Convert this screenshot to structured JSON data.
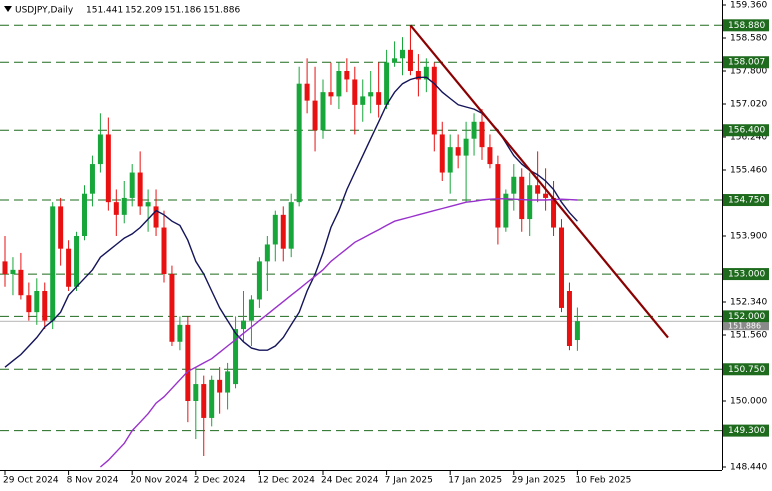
{
  "chart_data": {
    "type": "candlestick",
    "title": "USDJPY,Daily",
    "up_color": "#17a63a",
    "down_color": "#e81010",
    "categories": [
      "29 Oct 2024",
      null,
      null,
      null,
      null,
      null,
      null,
      null,
      "8 Nov 2024",
      null,
      null,
      null,
      null,
      null,
      null,
      null,
      "20 Nov 2024",
      null,
      null,
      null,
      null,
      null,
      null,
      null,
      "2 Dec 2024",
      null,
      null,
      null,
      null,
      null,
      null,
      null,
      "12 Dec 2024",
      null,
      null,
      null,
      null,
      null,
      null,
      null,
      "24 Dec 2024",
      null,
      null,
      null,
      null,
      null,
      null,
      null,
      "7 Jan 2025",
      null,
      null,
      null,
      null,
      null,
      null,
      null,
      "17 Jan 2025",
      null,
      null,
      null,
      null,
      null,
      null,
      null,
      "29 Jan 2025",
      null,
      null,
      null,
      null,
      null,
      null,
      null,
      "10 Feb 2025"
    ],
    "ohlc": [
      [
        153.3,
        153.9,
        152.7,
        153.0
      ],
      [
        153.0,
        153.4,
        152.5,
        153.1
      ],
      [
        153.1,
        153.5,
        152.4,
        152.5
      ],
      [
        152.5,
        152.8,
        151.9,
        152.1
      ],
      [
        152.1,
        152.9,
        151.8,
        152.6
      ],
      [
        152.6,
        152.8,
        151.7,
        151.9
      ],
      [
        151.9,
        154.7,
        151.7,
        154.6
      ],
      [
        154.6,
        154.8,
        153.2,
        153.6
      ],
      [
        153.6,
        153.8,
        152.6,
        152.7
      ],
      [
        152.7,
        154.0,
        152.6,
        153.9
      ],
      [
        153.9,
        155.1,
        153.8,
        154.9
      ],
      [
        154.9,
        155.8,
        154.6,
        155.6
      ],
      [
        155.6,
        156.8,
        155.4,
        156.3
      ],
      [
        156.3,
        156.7,
        154.5,
        154.7
      ],
      [
        154.7,
        155.0,
        153.9,
        154.4
      ],
      [
        154.4,
        155.2,
        154.2,
        154.8
      ],
      [
        154.8,
        155.6,
        154.6,
        155.4
      ],
      [
        155.4,
        155.9,
        154.4,
        154.6
      ],
      [
        154.6,
        155.0,
        154.0,
        154.7
      ],
      [
        154.6,
        155.0,
        153.9,
        154.1
      ],
      [
        154.1,
        154.5,
        152.8,
        153.0
      ],
      [
        153.0,
        153.2,
        151.3,
        151.4
      ],
      [
        151.4,
        152.0,
        151.2,
        151.8
      ],
      [
        151.8,
        152.0,
        149.5,
        150.0
      ],
      [
        150.0,
        150.8,
        149.1,
        150.4
      ],
      [
        150.4,
        150.6,
        148.7,
        149.6
      ],
      [
        149.6,
        150.6,
        149.4,
        150.5
      ],
      [
        150.5,
        150.8,
        149.7,
        150.2
      ],
      [
        150.2,
        150.9,
        149.8,
        150.7
      ],
      [
        150.4,
        152.0,
        150.3,
        151.7
      ],
      [
        151.7,
        152.6,
        151.4,
        151.9
      ],
      [
        151.9,
        152.5,
        151.3,
        152.4
      ],
      [
        152.4,
        153.4,
        152.2,
        153.3
      ],
      [
        153.3,
        153.9,
        152.6,
        153.7
      ],
      [
        153.7,
        154.5,
        153.3,
        154.4
      ],
      [
        154.4,
        154.6,
        153.3,
        153.6
      ],
      [
        153.6,
        154.9,
        153.4,
        154.7
      ],
      [
        154.7,
        157.9,
        154.6,
        157.5
      ],
      [
        157.5,
        158.1,
        156.8,
        157.1
      ],
      [
        157.1,
        157.9,
        155.9,
        156.4
      ],
      [
        156.4,
        157.6,
        156.2,
        157.3
      ],
      [
        157.3,
        158.0,
        157.0,
        157.2
      ],
      [
        157.2,
        158.0,
        156.9,
        157.8
      ],
      [
        157.8,
        158.1,
        157.3,
        157.6
      ],
      [
        157.6,
        157.9,
        156.3,
        157.0
      ],
      [
        157.0,
        157.6,
        156.6,
        157.2
      ],
      [
        157.2,
        157.8,
        156.8,
        157.3
      ],
      [
        157.3,
        158.0,
        156.7,
        157.0
      ],
      [
        157.0,
        158.3,
        156.9,
        158.0
      ],
      [
        158.0,
        158.5,
        157.9,
        158.1
      ],
      [
        158.1,
        158.6,
        157.7,
        158.3
      ],
      [
        158.3,
        158.88,
        157.7,
        157.8
      ],
      [
        157.8,
        158.2,
        157.2,
        157.6
      ],
      [
        157.6,
        158.1,
        157.3,
        157.9
      ],
      [
        157.9,
        158.0,
        155.9,
        156.3
      ],
      [
        156.3,
        156.6,
        155.2,
        155.4
      ],
      [
        155.4,
        156.3,
        154.9,
        156.0
      ],
      [
        156.0,
        156.3,
        155.5,
        155.8
      ],
      [
        155.8,
        156.6,
        154.7,
        156.2
      ],
      [
        156.2,
        156.8,
        155.8,
        156.6
      ],
      [
        156.6,
        156.9,
        155.7,
        156.0
      ],
      [
        156.0,
        156.3,
        155.5,
        155.6
      ],
      [
        155.6,
        155.8,
        153.7,
        154.1
      ],
      [
        154.1,
        155.0,
        154.0,
        154.9
      ],
      [
        154.9,
        155.6,
        154.5,
        155.3
      ],
      [
        155.3,
        155.5,
        154.0,
        154.3
      ],
      [
        154.3,
        155.4,
        153.9,
        155.1
      ],
      [
        155.1,
        155.9,
        154.7,
        154.9
      ],
      [
        154.9,
        155.5,
        154.5,
        154.8
      ],
      [
        154.8,
        155.2,
        153.9,
        154.1
      ],
      [
        154.1,
        154.3,
        152.1,
        152.2
      ],
      [
        152.6,
        152.8,
        151.2,
        151.3
      ],
      [
        151.441,
        152.209,
        151.186,
        151.886
      ]
    ],
    "series": [
      {
        "color": "#14145a",
        "values": [
          150.8,
          150.95,
          151.1,
          151.3,
          151.5,
          151.75,
          151.9,
          152.1,
          152.5,
          152.7,
          152.9,
          153.1,
          153.4,
          153.55,
          153.7,
          153.85,
          153.95,
          154.1,
          154.3,
          154.5,
          154.4,
          154.25,
          154.15,
          153.8,
          153.3,
          153.0,
          152.6,
          152.2,
          151.9,
          151.6,
          151.4,
          151.25,
          151.2,
          151.2,
          151.3,
          151.5,
          151.8,
          152.1,
          152.6,
          153.0,
          153.5,
          154.1,
          154.5,
          155.0,
          155.4,
          155.8,
          156.2,
          156.6,
          157.0,
          157.3,
          157.5,
          157.6,
          157.65,
          157.65,
          157.5,
          157.3,
          157.15,
          157.0,
          156.95,
          156.9,
          156.8,
          156.6,
          156.4,
          156.1,
          155.8,
          155.6,
          155.45,
          155.35,
          155.2,
          155.0,
          154.7,
          154.45,
          154.25
        ]
      },
      {
        "color": "#9932cc",
        "values": [
          null,
          null,
          null,
          null,
          null,
          null,
          null,
          null,
          null,
          null,
          null,
          null,
          148.44,
          148.6,
          148.8,
          149.0,
          149.3,
          149.5,
          149.7,
          149.95,
          150.1,
          150.3,
          150.5,
          150.7,
          150.8,
          150.9,
          151.0,
          151.15,
          151.3,
          151.45,
          151.6,
          151.75,
          151.9,
          152.05,
          152.2,
          152.35,
          152.5,
          152.65,
          152.8,
          152.95,
          153.1,
          153.3,
          153.45,
          153.6,
          153.75,
          153.85,
          153.95,
          154.05,
          154.15,
          154.25,
          154.3,
          154.35,
          154.4,
          154.45,
          154.5,
          154.55,
          154.6,
          154.65,
          154.7,
          154.72,
          154.75,
          154.77,
          154.78,
          154.78,
          154.77,
          154.76,
          154.75,
          154.75,
          154.75,
          154.76,
          154.77,
          154.76,
          154.75
        ]
      }
    ],
    "ylim": [
      148.44,
      159.36
    ],
    "yticks": [
      {
        "value": 159.36,
        "label": "159.360"
      },
      {
        "value": 158.58,
        "label": "158.580"
      },
      {
        "value": 157.8,
        "label": "157.800"
      },
      {
        "value": 157.02,
        "label": "157.020"
      },
      {
        "value": 156.24,
        "label": "156.240"
      },
      {
        "value": 155.46,
        "label": "155.460"
      },
      {
        "value": 153.9,
        "label": "153.900"
      },
      {
        "value": 152.34,
        "label": "152.340"
      },
      {
        "value": 151.56,
        "label": "151.560"
      },
      {
        "value": 150.0,
        "label": "150.000"
      },
      {
        "value": 148.44,
        "label": "148.440"
      }
    ],
    "levels": {
      "color": "#1e6b1e",
      "items": [
        {
          "value": 158.88,
          "label": "158.880"
        },
        {
          "value": 158.007,
          "label": "158.007"
        },
        {
          "value": 156.4,
          "label": "156.400"
        },
        {
          "value": 154.75,
          "label": "154.750"
        },
        {
          "value": 153.0,
          "label": "153.000"
        },
        {
          "value": 152.0,
          "label": "152.000"
        },
        {
          "value": 150.75,
          "label": "150.750"
        },
        {
          "value": 149.3,
          "label": "149.300"
        }
      ]
    },
    "current_price": {
      "value": 151.886,
      "label": "151.886",
      "color": "#8a8a8a"
    },
    "trendline": {
      "from": 158.88,
      "to": 151.5,
      "color": "#8b0000"
    }
  }
}
